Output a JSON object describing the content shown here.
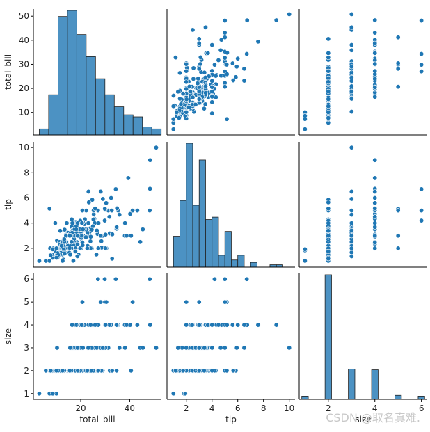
{
  "chart_data": {
    "type": "pairplot",
    "variables": [
      "total_bill",
      "tip",
      "size"
    ],
    "ticks": {
      "total_bill": [
        10,
        20,
        30,
        40,
        50
      ],
      "tip": [
        2,
        4,
        6,
        8,
        10
      ],
      "size": [
        1,
        2,
        3,
        4,
        5,
        6
      ]
    },
    "x_ticks": {
      "total_bill": [
        20,
        40
      ],
      "tip": [
        2,
        4,
        6,
        8,
        10
      ],
      "size": [
        2,
        4,
        6
      ]
    },
    "ranges": {
      "total_bill": [
        0.67,
        52.95
      ],
      "tip": [
        0.5,
        10.45
      ],
      "size": [
        0.75,
        6.25
      ]
    },
    "histograms": {
      "total_bill": {
        "bin_edges": [
          3.07,
          6.9,
          10.73,
          14.56,
          18.39,
          22.22,
          26.05,
          29.88,
          33.71,
          37.54,
          41.37,
          45.2,
          49.03,
          52.86
        ],
        "counts": [
          3,
          20,
          59,
          62,
          50,
          39,
          28,
          20,
          14,
          10,
          9,
          4,
          3,
          6
        ]
      },
      "tip": {
        "bin_edges": [
          1.0,
          1.5,
          2.0,
          2.5,
          3.0,
          3.5,
          4.0,
          4.5,
          5.0,
          5.5,
          6.0,
          6.5,
          7.0,
          7.5,
          8.0,
          8.5,
          9.0,
          9.5,
          10.0
        ],
        "counts": [
          13,
          28,
          52,
          26,
          45,
          20,
          21,
          5,
          15,
          3,
          5,
          0,
          2,
          0,
          0,
          1,
          1,
          0
        ]
      },
      "size": {
        "values": [
          1,
          2,
          3,
          4,
          5,
          6
        ],
        "counts": [
          4,
          156,
          38,
          37,
          5,
          4
        ]
      }
    },
    "points": [
      [
        16.99,
        1.01,
        2
      ],
      [
        10.34,
        1.66,
        3
      ],
      [
        21.01,
        3.5,
        3
      ],
      [
        23.68,
        3.31,
        2
      ],
      [
        24.59,
        3.61,
        4
      ],
      [
        25.29,
        4.71,
        4
      ],
      [
        8.77,
        2.0,
        2
      ],
      [
        26.88,
        3.12,
        4
      ],
      [
        15.04,
        1.96,
        2
      ],
      [
        14.78,
        3.23,
        2
      ],
      [
        10.27,
        1.71,
        2
      ],
      [
        35.26,
        5.0,
        4
      ],
      [
        15.42,
        1.57,
        2
      ],
      [
        18.43,
        3.0,
        4
      ],
      [
        14.83,
        3.02,
        2
      ],
      [
        21.58,
        3.92,
        2
      ],
      [
        10.33,
        1.67,
        3
      ],
      [
        16.29,
        3.71,
        3
      ],
      [
        16.97,
        3.5,
        3
      ],
      [
        20.65,
        3.35,
        3
      ],
      [
        17.92,
        4.08,
        2
      ],
      [
        20.29,
        2.75,
        2
      ],
      [
        15.77,
        2.23,
        2
      ],
      [
        39.42,
        7.58,
        4
      ],
      [
        19.82,
        3.18,
        2
      ],
      [
        17.81,
        2.34,
        4
      ],
      [
        13.37,
        2.0,
        2
      ],
      [
        12.69,
        2.0,
        2
      ],
      [
        21.7,
        4.3,
        2
      ],
      [
        19.65,
        3.0,
        2
      ],
      [
        9.55,
        1.45,
        2
      ],
      [
        18.35,
        2.5,
        4
      ],
      [
        15.06,
        3.0,
        2
      ],
      [
        20.69,
        2.45,
        4
      ],
      [
        17.78,
        3.27,
        2
      ],
      [
        24.06,
        3.6,
        3
      ],
      [
        16.31,
        2.0,
        3
      ],
      [
        16.93,
        3.07,
        3
      ],
      [
        18.69,
        2.31,
        3
      ],
      [
        31.27,
        5.0,
        3
      ],
      [
        16.04,
        2.24,
        3
      ],
      [
        17.46,
        2.54,
        2
      ],
      [
        13.94,
        3.06,
        2
      ],
      [
        9.68,
        1.32,
        2
      ],
      [
        30.4,
        5.6,
        4
      ],
      [
        18.29,
        3.0,
        2
      ],
      [
        22.23,
        5.0,
        2
      ],
      [
        32.4,
        6.0,
        4
      ],
      [
        28.55,
        2.05,
        3
      ],
      [
        18.04,
        3.0,
        2
      ],
      [
        12.54,
        2.5,
        2
      ],
      [
        10.29,
        2.6,
        2
      ],
      [
        34.81,
        5.2,
        4
      ],
      [
        9.94,
        1.56,
        2
      ],
      [
        25.56,
        4.34,
        4
      ],
      [
        19.49,
        3.51,
        2
      ],
      [
        38.01,
        3.0,
        4
      ],
      [
        26.41,
        1.5,
        2
      ],
      [
        11.24,
        1.76,
        2
      ],
      [
        48.27,
        6.73,
        4
      ],
      [
        20.29,
        3.21,
        2
      ],
      [
        13.81,
        2.0,
        2
      ],
      [
        11.02,
        1.98,
        2
      ],
      [
        18.29,
        3.76,
        4
      ],
      [
        17.59,
        2.64,
        3
      ],
      [
        20.08,
        3.15,
        3
      ],
      [
        16.45,
        2.47,
        2
      ],
      [
        3.07,
        1.0,
        1
      ],
      [
        20.23,
        2.01,
        2
      ],
      [
        15.01,
        2.09,
        2
      ],
      [
        12.02,
        1.97,
        2
      ],
      [
        17.07,
        3.0,
        3
      ],
      [
        26.86,
        3.14,
        2
      ],
      [
        25.28,
        5.0,
        2
      ],
      [
        14.73,
        2.2,
        2
      ],
      [
        10.51,
        1.25,
        2
      ],
      [
        17.92,
        3.08,
        2
      ],
      [
        27.2,
        4.0,
        4
      ],
      [
        22.76,
        3.0,
        2
      ],
      [
        17.29,
        2.71,
        2
      ],
      [
        19.44,
        3.0,
        2
      ],
      [
        16.66,
        3.4,
        2
      ],
      [
        10.07,
        1.83,
        1
      ],
      [
        32.68,
        5.0,
        2
      ],
      [
        15.98,
        2.03,
        2
      ],
      [
        34.83,
        5.17,
        4
      ],
      [
        13.03,
        2.0,
        2
      ],
      [
        18.28,
        4.0,
        2
      ],
      [
        24.71,
        5.85,
        2
      ],
      [
        21.16,
        3.0,
        2
      ],
      [
        28.97,
        3.0,
        2
      ],
      [
        22.49,
        3.5,
        2
      ],
      [
        5.75,
        1.0,
        2
      ],
      [
        16.32,
        4.3,
        2
      ],
      [
        22.75,
        3.25,
        2
      ],
      [
        40.17,
        4.73,
        4
      ],
      [
        27.28,
        4.0,
        2
      ],
      [
        12.03,
        1.5,
        2
      ],
      [
        21.01,
        3.0,
        2
      ],
      [
        12.46,
        1.5,
        2
      ],
      [
        11.35,
        2.5,
        2
      ],
      [
        15.38,
        3.0,
        2
      ],
      [
        44.3,
        2.5,
        3
      ],
      [
        22.42,
        3.48,
        2
      ],
      [
        20.92,
        4.08,
        2
      ],
      [
        15.36,
        1.64,
        2
      ],
      [
        20.49,
        4.06,
        2
      ],
      [
        25.21,
        4.29,
        2
      ],
      [
        18.24,
        3.76,
        2
      ],
      [
        14.31,
        4.0,
        2
      ],
      [
        14.0,
        3.0,
        2
      ],
      [
        7.25,
        1.0,
        1
      ],
      [
        38.07,
        4.0,
        3
      ],
      [
        23.95,
        2.55,
        2
      ],
      [
        25.71,
        4.0,
        3
      ],
      [
        17.31,
        3.5,
        2
      ],
      [
        29.93,
        5.07,
        4
      ],
      [
        10.65,
        1.5,
        2
      ],
      [
        12.43,
        1.8,
        2
      ],
      [
        24.08,
        2.92,
        4
      ],
      [
        11.69,
        2.31,
        2
      ],
      [
        13.42,
        1.68,
        2
      ],
      [
        14.26,
        2.5,
        2
      ],
      [
        15.95,
        2.0,
        2
      ],
      [
        12.48,
        2.52,
        2
      ],
      [
        29.8,
        4.2,
        6
      ],
      [
        8.52,
        1.48,
        2
      ],
      [
        14.52,
        2.0,
        2
      ],
      [
        11.38,
        2.0,
        2
      ],
      [
        22.82,
        2.18,
        3
      ],
      [
        19.08,
        1.5,
        2
      ],
      [
        20.27,
        2.83,
        2
      ],
      [
        11.17,
        1.5,
        2
      ],
      [
        12.26,
        2.0,
        2
      ],
      [
        18.26,
        3.25,
        2
      ],
      [
        8.51,
        1.25,
        2
      ],
      [
        10.33,
        2.0,
        2
      ],
      [
        14.15,
        2.0,
        2
      ],
      [
        16.0,
        2.0,
        2
      ],
      [
        13.16,
        2.75,
        2
      ],
      [
        17.47,
        3.5,
        2
      ],
      [
        34.3,
        6.7,
        6
      ],
      [
        41.19,
        5.0,
        5
      ],
      [
        27.05,
        5.0,
        6
      ],
      [
        16.43,
        2.3,
        2
      ],
      [
        8.35,
        1.5,
        2
      ],
      [
        18.64,
        1.36,
        3
      ],
      [
        11.87,
        1.63,
        2
      ],
      [
        9.78,
        1.73,
        2
      ],
      [
        7.51,
        2.0,
        2
      ],
      [
        14.07,
        2.5,
        2
      ],
      [
        13.13,
        2.0,
        2
      ],
      [
        17.26,
        2.74,
        3
      ],
      [
        24.55,
        2.0,
        4
      ],
      [
        19.77,
        2.0,
        4
      ],
      [
        29.85,
        5.14,
        5
      ],
      [
        48.17,
        5.0,
        6
      ],
      [
        25.0,
        3.75,
        4
      ],
      [
        13.39,
        2.61,
        2
      ],
      [
        16.49,
        2.0,
        4
      ],
      [
        21.5,
        3.5,
        4
      ],
      [
        12.66,
        2.5,
        2
      ],
      [
        16.21,
        2.0,
        3
      ],
      [
        13.81,
        2.0,
        2
      ],
      [
        17.51,
        3.0,
        2
      ],
      [
        24.52,
        3.48,
        3
      ],
      [
        20.76,
        2.24,
        2
      ],
      [
        31.71,
        4.5,
        4
      ],
      [
        10.59,
        1.61,
        2
      ],
      [
        10.63,
        2.0,
        2
      ],
      [
        50.81,
        10.0,
        3
      ],
      [
        15.81,
        3.16,
        2
      ],
      [
        7.25,
        5.15,
        2
      ],
      [
        31.85,
        3.18,
        2
      ],
      [
        16.82,
        4.0,
        2
      ],
      [
        32.9,
        3.11,
        2
      ],
      [
        17.89,
        2.0,
        2
      ],
      [
        14.48,
        2.0,
        2
      ],
      [
        9.6,
        4.0,
        2
      ],
      [
        34.63,
        3.55,
        2
      ],
      [
        34.65,
        3.68,
        4
      ],
      [
        23.33,
        5.65,
        2
      ],
      [
        45.35,
        3.5,
        3
      ],
      [
        23.17,
        6.5,
        4
      ],
      [
        40.55,
        3.0,
        2
      ],
      [
        20.69,
        5.0,
        5
      ],
      [
        20.9,
        3.5,
        3
      ],
      [
        30.46,
        2.0,
        5
      ],
      [
        18.15,
        3.5,
        3
      ],
      [
        23.1,
        4.0,
        3
      ],
      [
        15.69,
        1.5,
        2
      ],
      [
        19.81,
        4.19,
        2
      ],
      [
        28.44,
        2.56,
        2
      ],
      [
        15.48,
        2.02,
        2
      ],
      [
        16.58,
        4.0,
        2
      ],
      [
        7.56,
        1.44,
        2
      ],
      [
        10.34,
        2.0,
        2
      ],
      [
        43.11,
        5.0,
        4
      ],
      [
        13.0,
        2.0,
        2
      ],
      [
        13.51,
        2.0,
        2
      ],
      [
        18.71,
        4.0,
        3
      ],
      [
        12.74,
        2.01,
        2
      ],
      [
        13.0,
        2.0,
        2
      ],
      [
        16.4,
        2.5,
        2
      ],
      [
        20.53,
        4.0,
        4
      ],
      [
        16.47,
        3.23,
        3
      ],
      [
        26.59,
        3.41,
        3
      ],
      [
        38.73,
        3.0,
        4
      ],
      [
        24.27,
        2.03,
        2
      ],
      [
        12.76,
        2.23,
        2
      ],
      [
        30.06,
        2.0,
        3
      ],
      [
        25.89,
        5.16,
        4
      ],
      [
        48.33,
        9.0,
        4
      ],
      [
        13.27,
        2.5,
        2
      ],
      [
        28.17,
        6.5,
        3
      ],
      [
        12.9,
        1.1,
        2
      ],
      [
        28.15,
        3.0,
        5
      ],
      [
        11.59,
        1.5,
        2
      ],
      [
        7.74,
        1.44,
        2
      ],
      [
        30.14,
        3.09,
        4
      ],
      [
        12.16,
        2.2,
        2
      ],
      [
        13.42,
        3.48,
        2
      ],
      [
        8.58,
        1.92,
        1
      ],
      [
        15.98,
        3.0,
        3
      ],
      [
        13.42,
        1.58,
        2
      ],
      [
        16.27,
        2.5,
        2
      ],
      [
        10.09,
        2.0,
        2
      ],
      [
        20.45,
        3.0,
        4
      ],
      [
        13.28,
        2.72,
        2
      ],
      [
        22.12,
        2.88,
        2
      ],
      [
        24.01,
        2.0,
        4
      ],
      [
        15.69,
        3.0,
        3
      ],
      [
        11.61,
        3.39,
        2
      ],
      [
        10.77,
        1.47,
        2
      ],
      [
        15.53,
        3.0,
        2
      ],
      [
        10.07,
        1.25,
        2
      ],
      [
        12.6,
        1.0,
        2
      ],
      [
        32.83,
        1.17,
        2
      ],
      [
        35.83,
        4.67,
        3
      ],
      [
        29.03,
        5.92,
        3
      ],
      [
        27.18,
        2.0,
        2
      ],
      [
        22.67,
        2.0,
        2
      ],
      [
        17.82,
        1.75,
        2
      ],
      [
        18.78,
        3.0,
        2
      ]
    ],
    "watermark": "CSDN @取名真难."
  }
}
